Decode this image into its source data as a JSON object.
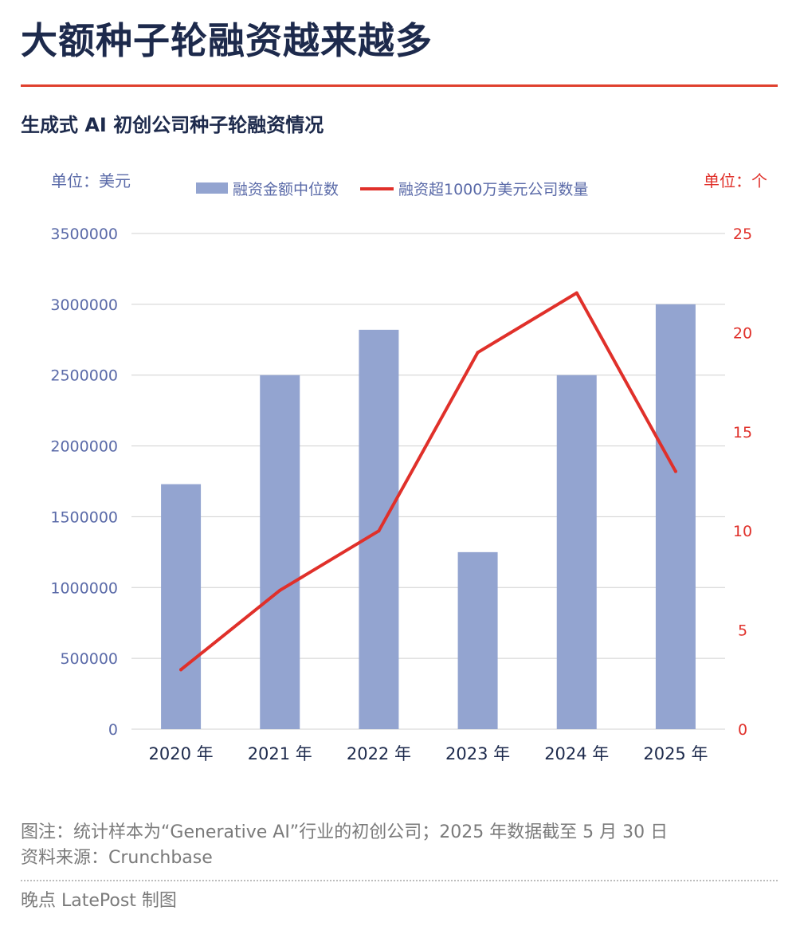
{
  "header": {
    "title": "大额种子轮融资越来越多",
    "subtitle": "生成式 AI 初创公司种子轮融资情况"
  },
  "chart_data": {
    "type": "bar",
    "categories": [
      "2020 年",
      "2021 年",
      "2022 年",
      "2023 年",
      "2024 年",
      "2025 年"
    ],
    "series": [
      {
        "name": "融资金额中位数",
        "type": "bar",
        "axis": "left",
        "values": [
          1730000,
          2500000,
          2820000,
          1250000,
          2500000,
          3000000
        ]
      },
      {
        "name": "融资超1000万美元公司数量",
        "type": "line",
        "axis": "right",
        "values": [
          3,
          7,
          10,
          19,
          22,
          13
        ]
      }
    ],
    "y_left": {
      "unit_label": "单位：美元",
      "min": 0,
      "max": 3500000,
      "ticks": [
        "0",
        "500000",
        "1000000",
        "1500000",
        "2000000",
        "2500000",
        "3000000",
        "3500000"
      ]
    },
    "y_right": {
      "unit_label": "单位：个",
      "min": 0,
      "max": 25,
      "ticks": [
        "0",
        "5",
        "10",
        "15",
        "20",
        "25"
      ]
    },
    "legend_position": "top-center",
    "grid": true,
    "colors": {
      "bar": "#93a4d0",
      "line": "#e0302a",
      "left_axis_text": "#5a6aa8",
      "right_axis_text": "#e0302a",
      "grid": "#d0d0d0",
      "x_text": "#1d2a4c"
    }
  },
  "footer": {
    "note": "图注：统计样本为“Generative AI”行业的初创公司；2025 年数据截至 5 月 30 日",
    "source": "资料来源：Crunchbase",
    "credit": "晚点 LatePost 制图"
  }
}
